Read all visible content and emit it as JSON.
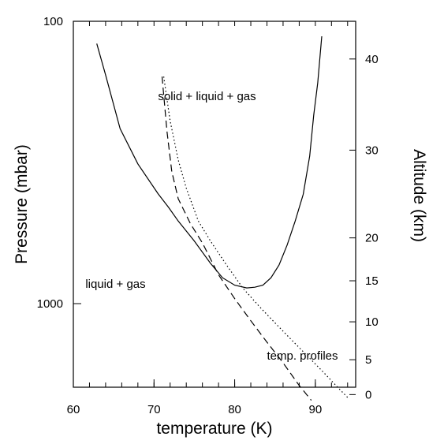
{
  "chart_data": {
    "type": "line",
    "xlabel": "temperature (K)",
    "ylabel": "Pressure (mbar)",
    "ylabel_right": "Altitude (km)",
    "xlim": [
      60,
      95
    ],
    "ylim": [
      100,
      3000
    ],
    "y_scale": "log",
    "x_ticks": [
      60,
      70,
      80,
      90
    ],
    "y_ticks": [
      100,
      1000
    ],
    "right_axis_ticks": [
      {
        "label": "40",
        "pressure": 136
      },
      {
        "label": "30",
        "pressure": 286
      },
      {
        "label": "20",
        "pressure": 585
      },
      {
        "label": "15",
        "pressure": 830
      },
      {
        "label": "10",
        "pressure": 1160
      },
      {
        "label": "5",
        "pressure": 1580
      },
      {
        "label": "0",
        "pressure": 2100
      }
    ],
    "grid": false,
    "annotations": [
      {
        "text": "solid + liquid + gas",
        "x": 70.5,
        "y": 190
      },
      {
        "text": "liquid + gas",
        "x": 61.5,
        "y": 880
      },
      {
        "text": "temp. profiles",
        "x": 84,
        "y": 1580
      }
    ],
    "series": [
      {
        "style": "solid",
        "x": [
          62.9,
          64.0,
          65.8,
          68.0,
          70.5,
          71.8,
          73.0,
          75.0,
          77.0,
          78.5,
          80.0,
          81.5,
          82.5,
          83.5,
          84.5,
          85.5,
          86.5,
          87.5,
          88.5,
          89.3,
          89.8,
          90.3,
          90.8
        ],
        "y": [
          120,
          155,
          240,
          320,
          408,
          456,
          510,
          600,
          720,
          810,
          860,
          880,
          875,
          860,
          810,
          730,
          620,
          510,
          410,
          300,
          215,
          165,
          113
        ]
      },
      {
        "style": "dashed",
        "x": [
          71.0,
          71.6,
          72.2,
          73.0,
          74.5,
          76.0,
          78.0,
          80.0,
          82.0,
          84.0,
          86.0,
          88.0,
          89.5
        ],
        "y": [
          157,
          245,
          340,
          425,
          520,
          610,
          790,
          960,
          1150,
          1370,
          1620,
          1950,
          2200
        ]
      },
      {
        "style": "dotted",
        "x": [
          71.2,
          72.0,
          73.0,
          74.0,
          75.5,
          77.0,
          79.0,
          81.0,
          83.0,
          85.0,
          87.0,
          89.0,
          91.0,
          93.0,
          94.0
        ],
        "y": [
          157,
          225,
          310,
          390,
          510,
          600,
          730,
          880,
          1020,
          1170,
          1340,
          1530,
          1750,
          2010,
          2150
        ]
      }
    ]
  }
}
